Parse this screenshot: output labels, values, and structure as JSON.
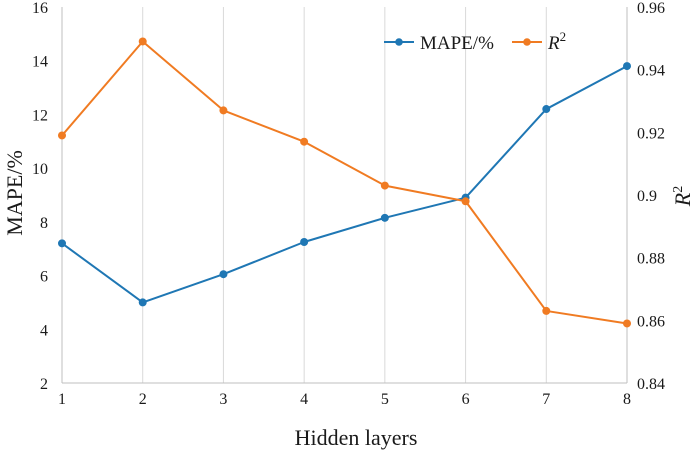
{
  "chart_data": {
    "type": "line",
    "x": [
      1,
      2,
      3,
      4,
      5,
      6,
      7,
      8
    ],
    "xlabel": "Hidden layers",
    "ylabel_left": "MAPE/%",
    "ylabel_right": "R",
    "ylabel_right_sup": "2",
    "ylim_left": [
      2,
      16
    ],
    "ylim_right": [
      0.84,
      0.96
    ],
    "xlim": [
      1,
      8
    ],
    "x_ticks": [
      "1",
      "2",
      "3",
      "4",
      "5",
      "6",
      "7",
      "8"
    ],
    "y_left_ticks": [
      "2",
      "4",
      "6",
      "8",
      "10",
      "12",
      "14",
      "16"
    ],
    "y_right_ticks": [
      "0.84",
      "0.86",
      "0.88",
      "0.9",
      "0.92",
      "0.94",
      "0.96"
    ],
    "grid": "vertical",
    "legend_position": "top-right",
    "series": [
      {
        "name": "MAPE/%",
        "axis": "left",
        "color": "#1f77b4",
        "values": [
          7.2,
          5.0,
          6.05,
          7.25,
          8.15,
          8.9,
          12.2,
          13.8
        ]
      },
      {
        "name": "R",
        "name_sup": "2",
        "axis": "right",
        "color": "#f07b22",
        "values": [
          0.919,
          0.949,
          0.927,
          0.917,
          0.903,
          0.898,
          0.863,
          0.859
        ]
      }
    ]
  }
}
